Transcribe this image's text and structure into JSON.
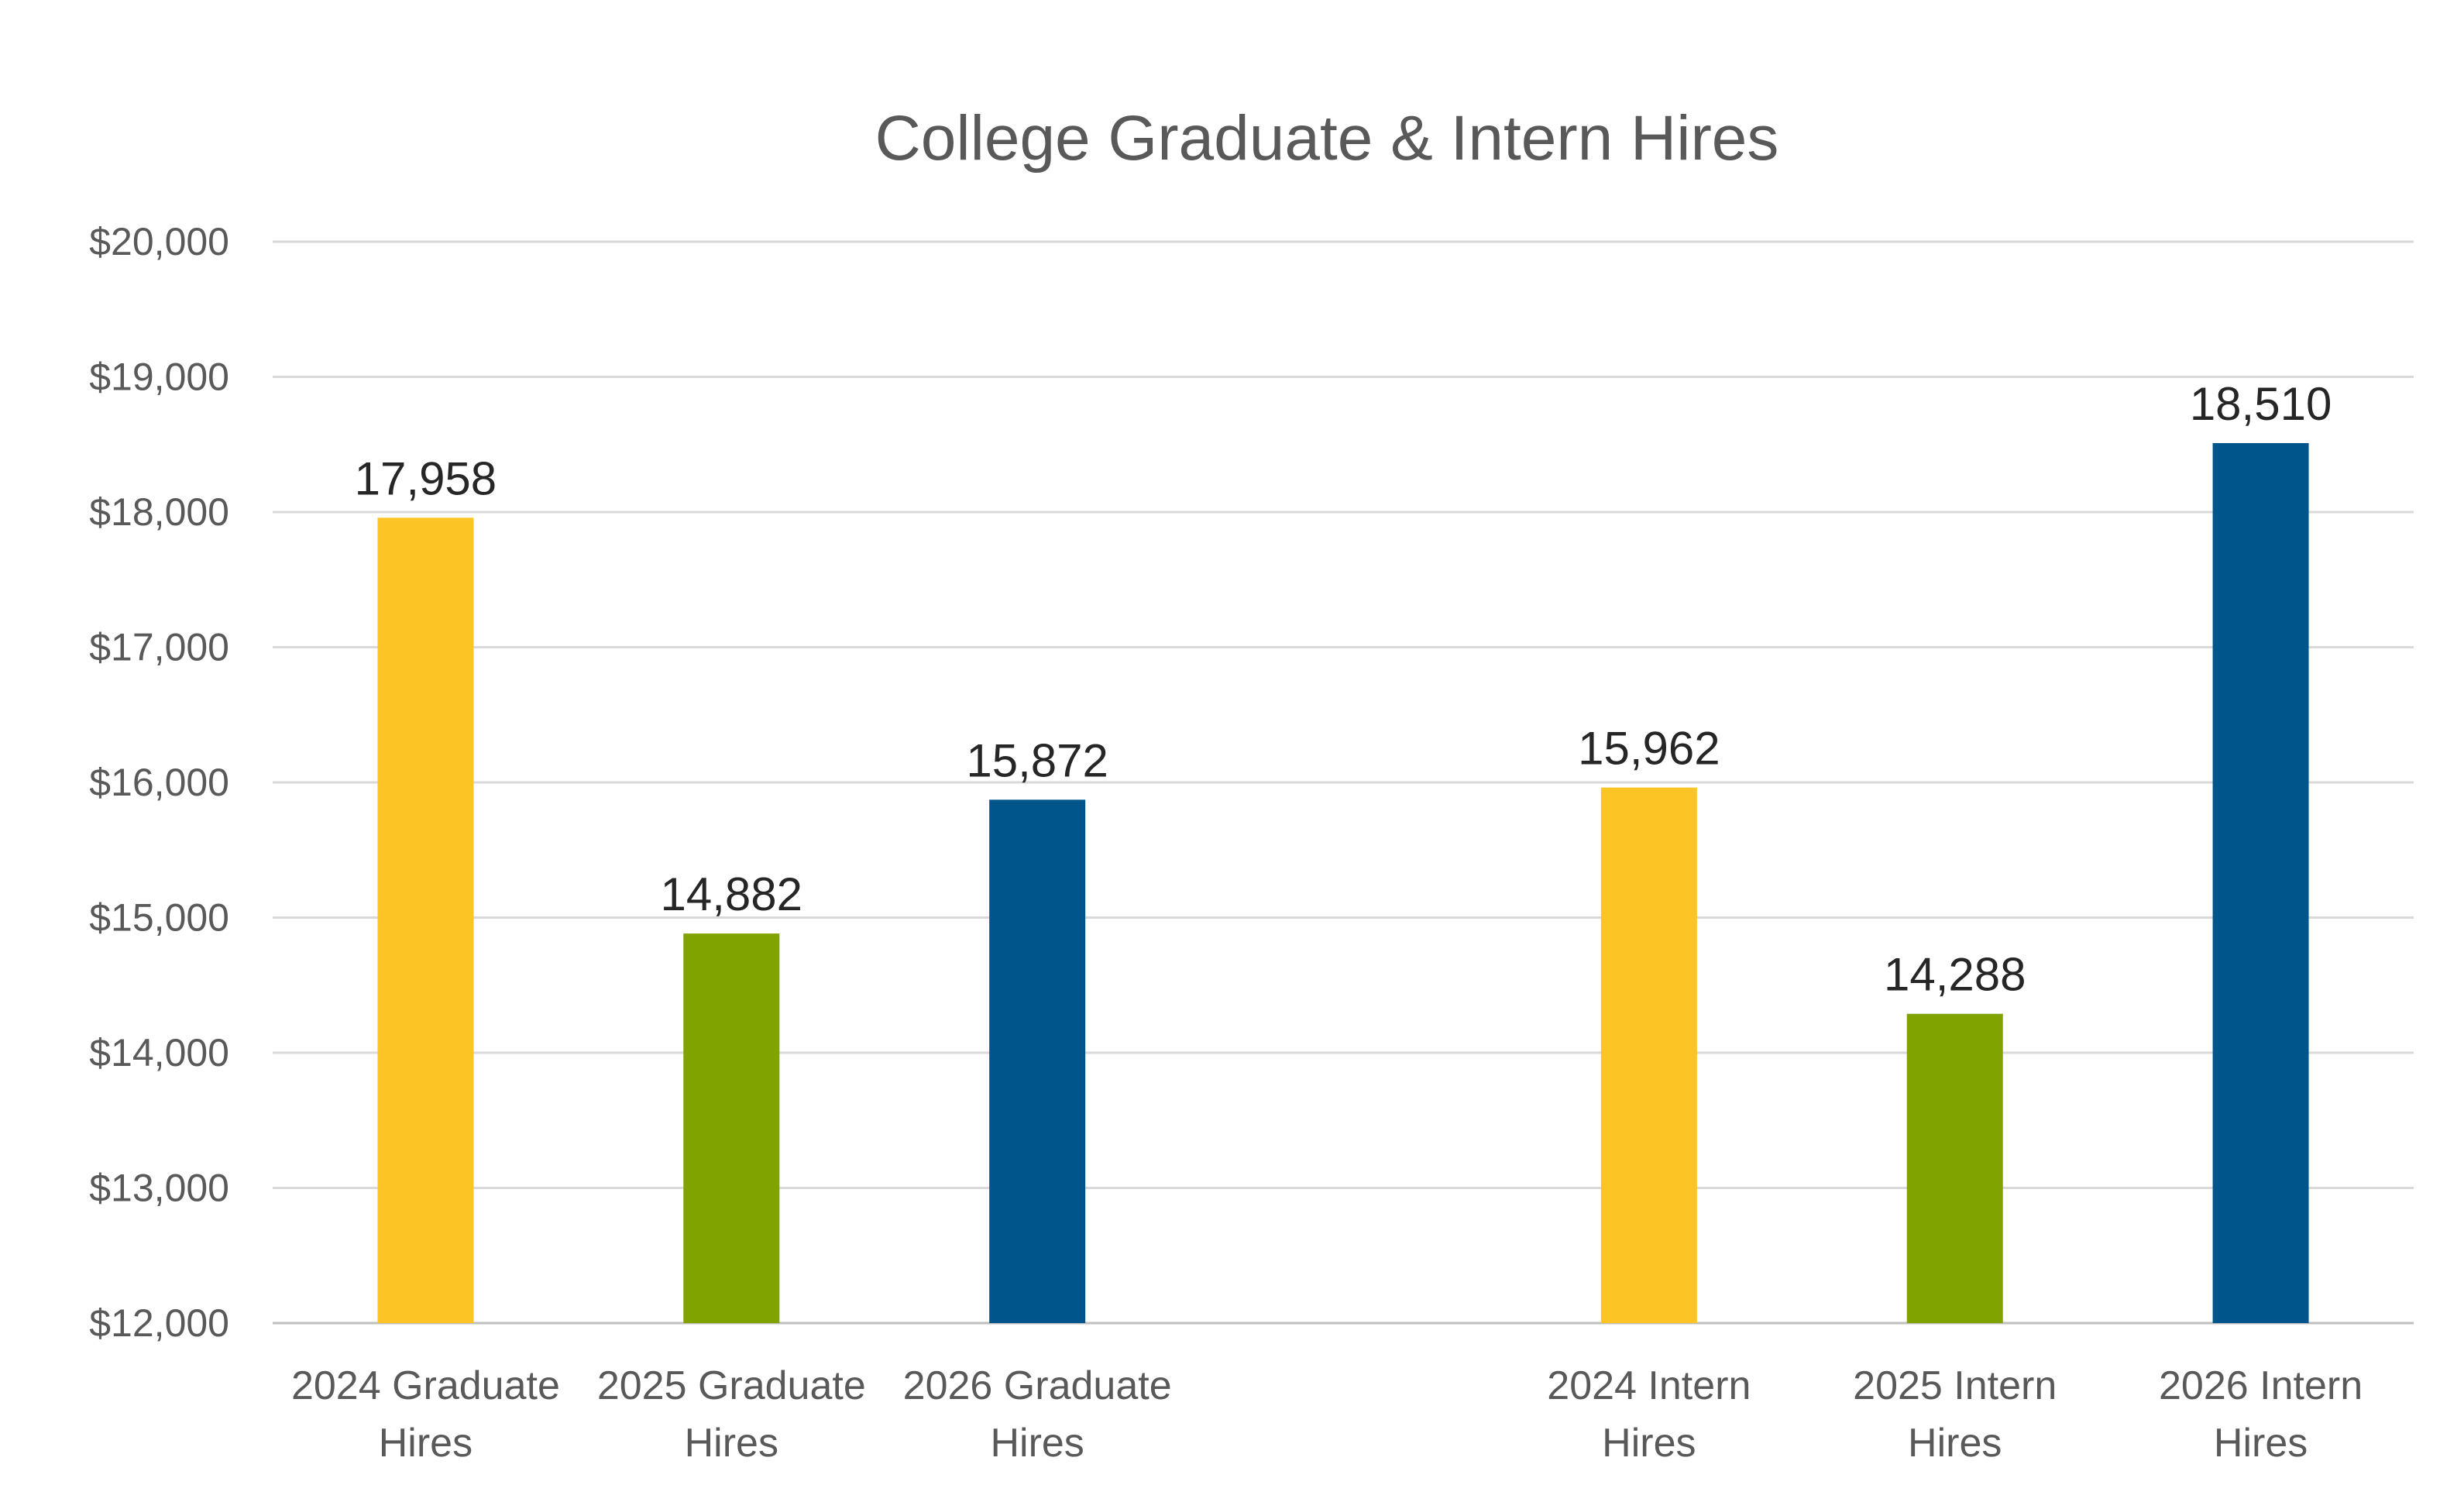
{
  "chart_data": {
    "type": "bar",
    "title": "College Graduate & Intern Hires",
    "xlabel": "",
    "ylabel": "",
    "ylim": [
      12000,
      20000
    ],
    "yticks": [
      12000,
      13000,
      14000,
      15000,
      16000,
      17000,
      18000,
      19000,
      20000
    ],
    "ytick_labels": [
      "$12,000",
      "$13,000",
      "$14,000",
      "$15,000",
      "$16,000",
      "$17,000",
      "$18,000",
      "$19,000",
      "$20,000"
    ],
    "grid": true,
    "legend": "none",
    "categories": [
      [
        "2024 Graduate",
        "Hires"
      ],
      [
        "2025 Graduate",
        "Hires"
      ],
      [
        "2026 Graduate",
        "Hires"
      ],
      [
        "",
        ""
      ],
      [
        "2024 Intern",
        "Hires"
      ],
      [
        "2025 Intern",
        "Hires"
      ],
      [
        "2026 Intern",
        "Hires"
      ]
    ],
    "values": [
      17958,
      14882,
      15872,
      null,
      15962,
      14288,
      18510
    ],
    "data_labels": [
      "17,958",
      "14,882",
      "15,872",
      "",
      "15,962",
      "14,288",
      "18,510"
    ],
    "colors": [
      "#fcc424",
      "#80a300",
      "#00568a",
      "",
      "#fcc424",
      "#80a300",
      "#00568a"
    ]
  }
}
